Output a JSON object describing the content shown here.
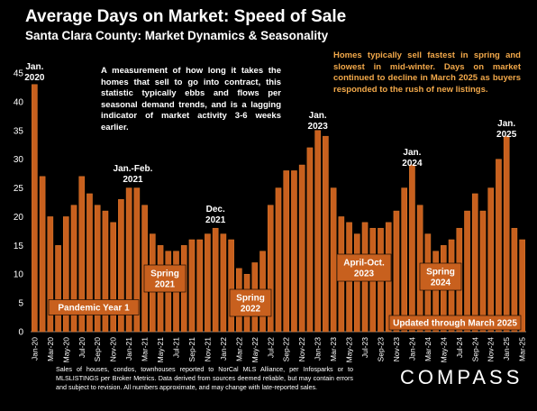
{
  "title": "Average Days on Market: Speed of Sale",
  "subtitle": "Santa Clara County: Market Dynamics & Seasonality",
  "description": "A measurement of how long it takes the homes that sell to go into contract, this statistic typically ebbs and flows per seasonal demand trends, and is a lagging indicator of market activity 3-6 weeks earlier.",
  "note": "Homes typically sell fastest in spring and slowest in mid-winter. Days on market continued to decline in March 2025 as buyers responded to the rush of new listings.",
  "footer": "Sales of houses, condos, townhouses reported to NorCal MLS Alliance, per Infosparks or to MLSLISTINGS per Broker Metrics. Data derived from sources deemed reliable, but may contain errors and subject to revision. All numbers approximate, and may change with late-reported sales.",
  "logo": "COMPASS",
  "colors": {
    "bar": "#c8601e",
    "bar_edge": "#e07a2c",
    "label_box": "#c8601e",
    "note_text": "#f3a94a",
    "background": "#000000"
  },
  "chart_data": {
    "type": "bar",
    "ylim": [
      0,
      45
    ],
    "yticks": [
      0,
      5,
      10,
      15,
      20,
      25,
      30,
      35,
      40,
      45
    ],
    "grid": false,
    "x_tick_labels": [
      "Jan-20",
      "Mar-20",
      "May-20",
      "Jul-20",
      "Sep-20",
      "Nov-20",
      "Jan-21",
      "Mar-21",
      "May-21",
      "Jul-21",
      "Sep-21",
      "Nov-21",
      "Jan-22",
      "Mar-22",
      "May-22",
      "Jul-22",
      "Sep-22",
      "Nov-22",
      "Jan-23",
      "Mar-23",
      "May-23",
      "Jul-23",
      "Sep-23",
      "Nov-23",
      "Jan-24",
      "Mar-24",
      "May-24",
      "Jul-24",
      "Sep-24",
      "Nov-24",
      "Jan-25",
      "Mar-25"
    ],
    "categories": [
      "Jan-20",
      "Feb-20",
      "Mar-20",
      "Apr-20",
      "May-20",
      "Jun-20",
      "Jul-20",
      "Aug-20",
      "Sep-20",
      "Oct-20",
      "Nov-20",
      "Dec-20",
      "Jan-21",
      "Feb-21",
      "Mar-21",
      "Apr-21",
      "May-21",
      "Jun-21",
      "Jul-21",
      "Aug-21",
      "Sep-21",
      "Oct-21",
      "Nov-21",
      "Dec-21",
      "Jan-22",
      "Feb-22",
      "Mar-22",
      "Apr-22",
      "May-22",
      "Jun-22",
      "Jul-22",
      "Aug-22",
      "Sep-22",
      "Oct-22",
      "Nov-22",
      "Dec-22",
      "Jan-23",
      "Feb-23",
      "Mar-23",
      "Apr-23",
      "May-23",
      "Jun-23",
      "Jul-23",
      "Aug-23",
      "Sep-23",
      "Oct-23",
      "Nov-23",
      "Dec-23",
      "Jan-24",
      "Feb-24",
      "Mar-24",
      "Apr-24",
      "May-24",
      "Jun-24",
      "Jul-24",
      "Aug-24",
      "Sep-24",
      "Oct-24",
      "Nov-24",
      "Dec-24",
      "Jan-25",
      "Feb-25",
      "Mar-25"
    ],
    "values": [
      43,
      27,
      20,
      15,
      20,
      22,
      27,
      24,
      22,
      21,
      19,
      23,
      25,
      25,
      22,
      17,
      15,
      14,
      14,
      15,
      16,
      16,
      17,
      18,
      17,
      16,
      11,
      10,
      12,
      14,
      22,
      25,
      28,
      28,
      29,
      32,
      35,
      34,
      25,
      20,
      19,
      17,
      19,
      18,
      18,
      19,
      21,
      25,
      29,
      22,
      17,
      14,
      15,
      16,
      18,
      21,
      24,
      21,
      25,
      30,
      34,
      18,
      16
    ],
    "peak_labels": [
      {
        "text": [
          "Jan.",
          "2020"
        ],
        "index": 0
      },
      {
        "text": [
          "Jan.-Feb.",
          "2021"
        ],
        "index": 12.5
      },
      {
        "text": [
          "Dec.",
          "2021"
        ],
        "index": 23
      },
      {
        "text": [
          "Jan.",
          "2023"
        ],
        "index": 36
      },
      {
        "text": [
          "Jan.",
          "2024"
        ],
        "index": 48
      },
      {
        "text": [
          "Jan.",
          "2025"
        ],
        "index": 60
      }
    ],
    "box_labels": [
      {
        "text": [
          "Pandemic Year 1"
        ]
      },
      {
        "text": [
          "Spring",
          "2021"
        ]
      },
      {
        "text": [
          "Spring",
          "2022"
        ]
      },
      {
        "text": [
          "April-Oct.",
          "2023"
        ]
      },
      {
        "text": [
          "Spring",
          "2024"
        ]
      },
      {
        "text": [
          "Updated through March 2025"
        ]
      }
    ]
  }
}
